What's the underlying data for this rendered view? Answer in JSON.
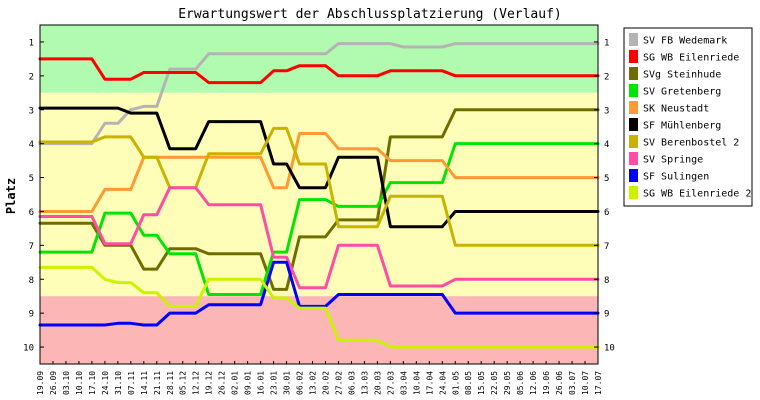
{
  "chart_data": {
    "type": "line",
    "title": "Erwartungswert der Abschlussplatzierung (Verlauf)",
    "ylabel": "Platz",
    "xlabel": "",
    "ylim": [
      1,
      10
    ],
    "y_inverted": true,
    "y_ticks": [
      1,
      2,
      3,
      4,
      5,
      6,
      7,
      8,
      9,
      10
    ],
    "legend_position": "right",
    "bands": [
      {
        "from": 0.5,
        "to": 2.5,
        "color": "#b0fbb0"
      },
      {
        "from": 2.5,
        "to": 8.5,
        "color": "#fefeb8"
      },
      {
        "from": 8.5,
        "to": 10.5,
        "color": "#fcb6b6"
      }
    ],
    "categories": [
      "19.09",
      "26.09",
      "03.10",
      "10.10",
      "17.10",
      "24.10",
      "31.10",
      "07.11",
      "14.11",
      "21.11",
      "28.11",
      "05.12",
      "12.12",
      "19.12",
      "26.12",
      "02.01",
      "09.01",
      "16.01",
      "23.01",
      "30.01",
      "06.02",
      "13.02",
      "20.02",
      "27.02",
      "06.03",
      "13.03",
      "20.03",
      "27.03",
      "03.04",
      "10.04",
      "17.04",
      "24.04",
      "01.05",
      "08.05",
      "15.05",
      "22.05",
      "29.05",
      "05.06",
      "12.06",
      "19.06",
      "26.06",
      "03.07",
      "10.07",
      "17.07"
    ],
    "series": [
      {
        "name": "SV FB Wedemark",
        "color": "#b4b4b4",
        "values": [
          4.0,
          4.0,
          4.0,
          4.0,
          4.0,
          3.4,
          3.4,
          3.0,
          2.9,
          2.9,
          1.8,
          1.8,
          1.8,
          1.35,
          1.35,
          1.35,
          1.35,
          1.35,
          1.35,
          1.35,
          1.35,
          1.35,
          1.35,
          1.05,
          1.05,
          1.05,
          1.05,
          1.05,
          1.15,
          1.15,
          1.15,
          1.15,
          1.05,
          1.05,
          1.05,
          1.05,
          1.05,
          1.05,
          1.05,
          1.05,
          1.05,
          1.05,
          1.05,
          1.05
        ]
      },
      {
        "name": "SG WB Eilenriede",
        "color": "#ff0000",
        "values": [
          1.5,
          1.5,
          1.5,
          1.5,
          1.5,
          2.1,
          2.1,
          2.1,
          1.9,
          1.9,
          1.9,
          1.9,
          1.9,
          2.2,
          2.2,
          2.2,
          2.2,
          2.2,
          1.85,
          1.85,
          1.7,
          1.7,
          1.7,
          2.0,
          2.0,
          2.0,
          2.0,
          1.85,
          1.85,
          1.85,
          1.85,
          1.85,
          2.0,
          2.0,
          2.0,
          2.0,
          2.0,
          2.0,
          2.0,
          2.0,
          2.0,
          2.0,
          2.0,
          2.0
        ]
      },
      {
        "name": "SVg Steinhude",
        "color": "#6e6e00",
        "values": [
          6.35,
          6.35,
          6.35,
          6.35,
          6.35,
          7.0,
          7.0,
          7.0,
          7.7,
          7.7,
          7.1,
          7.1,
          7.1,
          7.25,
          7.25,
          7.25,
          7.25,
          7.25,
          8.3,
          8.3,
          6.75,
          6.75,
          6.75,
          6.25,
          6.25,
          6.25,
          6.25,
          3.8,
          3.8,
          3.8,
          3.8,
          3.8,
          3.0,
          3.0,
          3.0,
          3.0,
          3.0,
          3.0,
          3.0,
          3.0,
          3.0,
          3.0,
          3.0,
          3.0
        ]
      },
      {
        "name": "SV Gretenberg",
        "color": "#00e600",
        "values": [
          7.2,
          7.2,
          7.2,
          7.2,
          7.2,
          6.05,
          6.05,
          6.05,
          6.7,
          6.7,
          7.25,
          7.25,
          7.25,
          8.45,
          8.45,
          8.45,
          8.45,
          8.45,
          7.2,
          7.2,
          5.65,
          5.65,
          5.65,
          5.85,
          5.85,
          5.85,
          5.85,
          5.15,
          5.15,
          5.15,
          5.15,
          5.15,
          4.0,
          4.0,
          4.0,
          4.0,
          4.0,
          4.0,
          4.0,
          4.0,
          4.0,
          4.0,
          4.0,
          4.0
        ]
      },
      {
        "name": "SK Neustadt",
        "color": "#ff9933",
        "values": [
          6.0,
          6.0,
          6.0,
          6.0,
          6.0,
          5.35,
          5.35,
          5.35,
          4.4,
          4.4,
          4.4,
          4.4,
          4.4,
          4.4,
          4.4,
          4.4,
          4.4,
          4.4,
          5.3,
          5.3,
          3.7,
          3.7,
          3.7,
          4.15,
          4.15,
          4.15,
          4.15,
          4.5,
          4.5,
          4.5,
          4.5,
          4.5,
          5.0,
          5.0,
          5.0,
          5.0,
          5.0,
          5.0,
          5.0,
          5.0,
          5.0,
          5.0,
          5.0,
          5.0
        ]
      },
      {
        "name": "SF Mühlenberg",
        "color": "#000000",
        "values": [
          2.95,
          2.95,
          2.95,
          2.95,
          2.95,
          2.95,
          2.95,
          3.1,
          3.1,
          3.1,
          4.15,
          4.15,
          4.15,
          3.35,
          3.35,
          3.35,
          3.35,
          3.35,
          4.6,
          4.6,
          5.3,
          5.3,
          5.3,
          4.4,
          4.4,
          4.4,
          4.4,
          6.45,
          6.45,
          6.45,
          6.45,
          6.45,
          6.0,
          6.0,
          6.0,
          6.0,
          6.0,
          6.0,
          6.0,
          6.0,
          6.0,
          6.0,
          6.0,
          6.0
        ]
      },
      {
        "name": "SV Berenbostel 2",
        "color": "#c8b400",
        "values": [
          3.95,
          3.95,
          3.95,
          3.95,
          3.95,
          3.8,
          3.8,
          3.8,
          4.4,
          4.4,
          5.3,
          5.3,
          5.3,
          4.3,
          4.3,
          4.3,
          4.3,
          4.3,
          3.55,
          3.55,
          4.6,
          4.6,
          4.6,
          6.45,
          6.45,
          6.45,
          6.45,
          5.55,
          5.55,
          5.55,
          5.55,
          5.55,
          7.0,
          7.0,
          7.0,
          7.0,
          7.0,
          7.0,
          7.0,
          7.0,
          7.0,
          7.0,
          7.0,
          7.0
        ]
      },
      {
        "name": "SV Springe",
        "color": "#ff4da6",
        "values": [
          6.15,
          6.15,
          6.15,
          6.15,
          6.15,
          6.95,
          6.95,
          6.95,
          6.1,
          6.1,
          5.3,
          5.3,
          5.3,
          5.8,
          5.8,
          5.8,
          5.8,
          5.8,
          7.35,
          7.35,
          8.25,
          8.25,
          8.25,
          7.0,
          7.0,
          7.0,
          7.0,
          8.2,
          8.2,
          8.2,
          8.2,
          8.2,
          8.0,
          8.0,
          8.0,
          8.0,
          8.0,
          8.0,
          8.0,
          8.0,
          8.0,
          8.0,
          8.0,
          8.0
        ]
      },
      {
        "name": "SF Sulingen",
        "color": "#0000ff",
        "values": [
          9.35,
          9.35,
          9.35,
          9.35,
          9.35,
          9.35,
          9.3,
          9.3,
          9.35,
          9.35,
          9.0,
          9.0,
          9.0,
          8.75,
          8.75,
          8.75,
          8.75,
          8.75,
          7.5,
          7.5,
          8.8,
          8.8,
          8.8,
          8.45,
          8.45,
          8.45,
          8.45,
          8.45,
          8.45,
          8.45,
          8.45,
          8.45,
          9.0,
          9.0,
          9.0,
          9.0,
          9.0,
          9.0,
          9.0,
          9.0,
          9.0,
          9.0,
          9.0,
          9.0
        ]
      },
      {
        "name": "SG WB Eilenriede 2",
        "color": "#ccf200",
        "values": [
          7.65,
          7.65,
          7.65,
          7.65,
          7.65,
          8.0,
          8.1,
          8.1,
          8.4,
          8.4,
          8.8,
          8.8,
          8.8,
          8.0,
          8.0,
          8.0,
          8.0,
          8.0,
          8.55,
          8.55,
          8.85,
          8.85,
          8.85,
          9.8,
          9.8,
          9.8,
          9.8,
          10.0,
          10.0,
          10.0,
          10.0,
          10.0,
          10.0,
          10.0,
          10.0,
          10.0,
          10.0,
          10.0,
          10.0,
          10.0,
          10.0,
          10.0,
          10.0,
          10.0
        ]
      }
    ]
  }
}
